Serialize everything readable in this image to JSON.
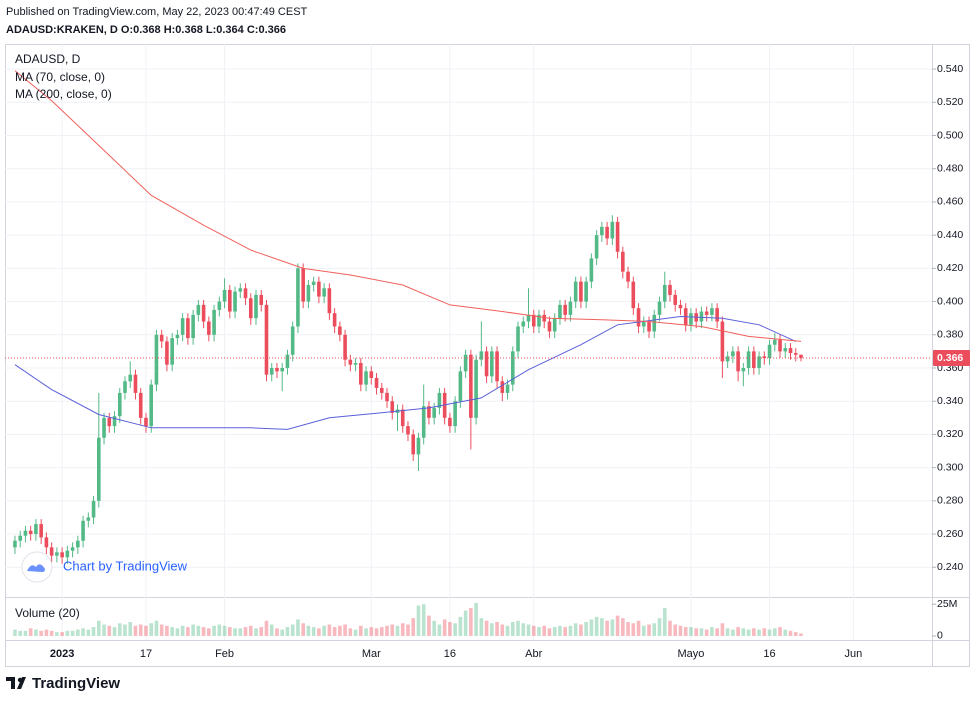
{
  "header": {
    "published": "Published on TradingView.com, May 22, 2023 00:47:49 CEST",
    "symbol_line": "ADAUSD:KRAKEN, D O:0.368 H:0.368 L:0.364 C:0.366"
  },
  "chart_data": {
    "type": "candlestick",
    "symbol": "ADAUSD, D",
    "watermark": "Chart by TradingView",
    "up_color": "#53b987",
    "down_color": "#eb4d5c",
    "grid": true,
    "open": [
      0.252,
      0.256,
      0.259,
      0.262,
      0.26,
      0.266,
      0.258,
      0.252,
      0.247,
      0.249,
      0.246,
      0.25,
      0.252,
      0.256,
      0.268,
      0.27,
      0.28,
      0.318,
      0.33,
      0.325,
      0.331,
      0.345,
      0.352,
      0.356,
      0.345,
      0.33,
      0.325,
      0.35,
      0.38,
      0.376,
      0.362,
      0.378,
      0.38,
      0.39,
      0.378,
      0.392,
      0.398,
      0.388,
      0.38,
      0.395,
      0.4,
      0.407,
      0.394,
      0.406,
      0.408,
      0.402,
      0.39,
      0.404,
      0.398,
      0.356,
      0.36,
      0.358,
      0.36,
      0.368,
      0.385,
      0.42,
      0.4,
      0.41,
      0.412,
      0.403,
      0.408,
      0.393,
      0.385,
      0.38,
      0.365,
      0.362,
      0.363,
      0.35,
      0.358,
      0.354,
      0.348,
      0.345,
      0.34,
      0.333,
      0.335,
      0.325,
      0.32,
      0.308,
      0.318,
      0.337,
      0.33,
      0.336,
      0.345,
      0.33,
      0.325,
      0.34,
      0.358,
      0.368,
      0.33,
      0.365,
      0.37,
      0.355,
      0.37,
      0.352,
      0.345,
      0.35,
      0.37,
      0.385,
      0.388,
      0.392,
      0.385,
      0.392,
      0.388,
      0.382,
      0.39,
      0.398,
      0.392,
      0.4,
      0.412,
      0.4,
      0.412,
      0.426,
      0.44,
      0.445,
      0.438,
      0.448,
      0.43,
      0.418,
      0.412,
      0.396,
      0.385,
      0.388,
      0.382,
      0.392,
      0.4,
      0.41,
      0.404,
      0.398,
      0.396,
      0.386,
      0.393,
      0.388,
      0.394,
      0.392,
      0.396,
      0.388,
      0.364,
      0.367,
      0.37,
      0.358,
      0.36,
      0.37,
      0.36,
      0.367,
      0.366,
      0.374,
      0.377,
      0.37,
      0.372,
      0.369,
      0.368
    ],
    "high": [
      0.259,
      0.262,
      0.265,
      0.265,
      0.269,
      0.269,
      0.261,
      0.255,
      0.252,
      0.252,
      0.253,
      0.255,
      0.259,
      0.271,
      0.273,
      0.283,
      0.345,
      0.333,
      0.333,
      0.334,
      0.348,
      0.355,
      0.364,
      0.359,
      0.348,
      0.333,
      0.353,
      0.383,
      0.383,
      0.379,
      0.381,
      0.383,
      0.393,
      0.393,
      0.395,
      0.401,
      0.401,
      0.391,
      0.398,
      0.403,
      0.414,
      0.41,
      0.409,
      0.411,
      0.411,
      0.405,
      0.407,
      0.407,
      0.401,
      0.363,
      0.363,
      0.363,
      0.371,
      0.388,
      0.423,
      0.423,
      0.413,
      0.415,
      0.415,
      0.411,
      0.411,
      0.396,
      0.388,
      0.383,
      0.368,
      0.366,
      0.366,
      0.361,
      0.361,
      0.357,
      0.351,
      0.348,
      0.343,
      0.338,
      0.338,
      0.328,
      0.323,
      0.321,
      0.35,
      0.34,
      0.339,
      0.348,
      0.348,
      0.333,
      0.343,
      0.361,
      0.371,
      0.371,
      0.368,
      0.388,
      0.373,
      0.373,
      0.373,
      0.355,
      0.353,
      0.373,
      0.388,
      0.391,
      0.408,
      0.395,
      0.395,
      0.395,
      0.391,
      0.393,
      0.401,
      0.401,
      0.403,
      0.415,
      0.415,
      0.415,
      0.429,
      0.443,
      0.448,
      0.448,
      0.452,
      0.451,
      0.433,
      0.421,
      0.415,
      0.399,
      0.391,
      0.391,
      0.395,
      0.403,
      0.418,
      0.413,
      0.407,
      0.401,
      0.399,
      0.396,
      0.396,
      0.397,
      0.397,
      0.399,
      0.399,
      0.391,
      0.37,
      0.373,
      0.373,
      0.363,
      0.373,
      0.373,
      0.37,
      0.37,
      0.377,
      0.381,
      0.38,
      0.375,
      0.375,
      0.372,
      0.368
    ],
    "low": [
      0.248,
      0.252,
      0.255,
      0.256,
      0.256,
      0.254,
      0.248,
      0.243,
      0.243,
      0.242,
      0.242,
      0.246,
      0.248,
      0.252,
      0.264,
      0.266,
      0.276,
      0.314,
      0.321,
      0.321,
      0.327,
      0.341,
      0.348,
      0.341,
      0.326,
      0.321,
      0.321,
      0.346,
      0.372,
      0.358,
      0.358,
      0.374,
      0.376,
      0.374,
      0.374,
      0.388,
      0.384,
      0.376,
      0.376,
      0.391,
      0.396,
      0.39,
      0.39,
      0.402,
      0.398,
      0.386,
      0.386,
      0.394,
      0.352,
      0.352,
      0.354,
      0.346,
      0.356,
      0.364,
      0.381,
      0.396,
      0.396,
      0.406,
      0.399,
      0.399,
      0.389,
      0.381,
      0.376,
      0.361,
      0.358,
      0.358,
      0.346,
      0.346,
      0.35,
      0.344,
      0.341,
      0.336,
      0.329,
      0.322,
      0.321,
      0.316,
      0.304,
      0.298,
      0.314,
      0.326,
      0.326,
      0.332,
      0.326,
      0.321,
      0.321,
      0.336,
      0.354,
      0.311,
      0.326,
      0.361,
      0.351,
      0.351,
      0.348,
      0.34,
      0.341,
      0.346,
      0.366,
      0.381,
      0.384,
      0.381,
      0.381,
      0.384,
      0.378,
      0.378,
      0.386,
      0.388,
      0.388,
      0.396,
      0.396,
      0.396,
      0.408,
      0.422,
      0.436,
      0.434,
      0.434,
      0.426,
      0.414,
      0.408,
      0.392,
      0.381,
      0.381,
      0.378,
      0.378,
      0.388,
      0.396,
      0.4,
      0.394,
      0.392,
      0.382,
      0.382,
      0.384,
      0.384,
      0.388,
      0.388,
      0.384,
      0.354,
      0.36,
      0.363,
      0.352,
      0.349,
      0.356,
      0.356,
      0.356,
      0.362,
      0.362,
      0.37,
      0.366,
      0.366,
      0.365,
      0.364,
      0.364
    ],
    "close": [
      0.256,
      0.259,
      0.262,
      0.26,
      0.266,
      0.258,
      0.252,
      0.247,
      0.249,
      0.246,
      0.25,
      0.252,
      0.256,
      0.268,
      0.27,
      0.28,
      0.318,
      0.33,
      0.325,
      0.331,
      0.345,
      0.352,
      0.356,
      0.345,
      0.33,
      0.325,
      0.35,
      0.38,
      0.376,
      0.362,
      0.378,
      0.38,
      0.39,
      0.378,
      0.392,
      0.398,
      0.388,
      0.38,
      0.395,
      0.4,
      0.407,
      0.394,
      0.406,
      0.408,
      0.402,
      0.39,
      0.404,
      0.398,
      0.356,
      0.36,
      0.358,
      0.36,
      0.368,
      0.385,
      0.42,
      0.4,
      0.41,
      0.412,
      0.403,
      0.408,
      0.393,
      0.385,
      0.38,
      0.365,
      0.362,
      0.363,
      0.35,
      0.358,
      0.354,
      0.348,
      0.345,
      0.34,
      0.333,
      0.335,
      0.325,
      0.32,
      0.308,
      0.318,
      0.337,
      0.33,
      0.336,
      0.345,
      0.33,
      0.325,
      0.34,
      0.358,
      0.368,
      0.33,
      0.365,
      0.37,
      0.355,
      0.37,
      0.352,
      0.345,
      0.35,
      0.37,
      0.385,
      0.388,
      0.392,
      0.385,
      0.392,
      0.388,
      0.382,
      0.39,
      0.398,
      0.392,
      0.4,
      0.412,
      0.4,
      0.412,
      0.426,
      0.44,
      0.445,
      0.438,
      0.448,
      0.43,
      0.418,
      0.412,
      0.396,
      0.385,
      0.388,
      0.382,
      0.392,
      0.4,
      0.41,
      0.404,
      0.398,
      0.396,
      0.386,
      0.393,
      0.388,
      0.394,
      0.392,
      0.396,
      0.388,
      0.364,
      0.367,
      0.37,
      0.358,
      0.36,
      0.37,
      0.36,
      0.367,
      0.366,
      0.374,
      0.377,
      0.37,
      0.372,
      0.369,
      0.368,
      0.366
    ],
    "xlim": [
      -1.9,
      175
    ],
    "xticks": [
      {
        "value": 9,
        "label": "2023"
      },
      {
        "value": 25,
        "label": "17"
      },
      {
        "value": 40,
        "label": "Feb"
      },
      {
        "value": 68,
        "label": "Mar"
      },
      {
        "value": 83,
        "label": "16"
      },
      {
        "value": 99,
        "label": "Abr"
      },
      {
        "value": 129,
        "label": "Mayo"
      },
      {
        "value": 144,
        "label": "16"
      },
      {
        "value": 160,
        "label": "Jun"
      }
    ],
    "ylim": [
      0.2221,
      0.5551
    ],
    "yticks": [
      {
        "value": 0.24,
        "label": "0.240"
      },
      {
        "value": 0.26,
        "label": "0.260"
      },
      {
        "value": 0.28,
        "label": "0.280"
      },
      {
        "value": 0.3,
        "label": "0.300"
      },
      {
        "value": 0.32,
        "label": "0.320"
      },
      {
        "value": 0.34,
        "label": "0.340"
      },
      {
        "value": 0.36,
        "label": "0.360"
      },
      {
        "value": 0.38,
        "label": "0.380"
      },
      {
        "value": 0.4,
        "label": "0.400"
      },
      {
        "value": 0.42,
        "label": "0.420"
      },
      {
        "value": 0.44,
        "label": "0.440"
      },
      {
        "value": 0.46,
        "label": "0.460"
      },
      {
        "value": 0.48,
        "label": "0.480"
      },
      {
        "value": 0.5,
        "label": "0.500"
      },
      {
        "value": 0.52,
        "label": "0.520"
      },
      {
        "value": 0.54,
        "label": "0.540"
      }
    ],
    "series": [
      {
        "name": "MA (70, close, 0)",
        "color": "#5b5fd9",
        "x": [
          0,
          7,
          16,
          26,
          35,
          45,
          52,
          60,
          70,
          79,
          89,
          98,
          108,
          115,
          127,
          135,
          142,
          149
        ],
        "values": [
          0.362,
          0.347,
          0.332,
          0.324,
          0.324,
          0.324,
          0.323,
          0.33,
          0.333,
          0.336,
          0.342,
          0.359,
          0.374,
          0.386,
          0.391,
          0.39,
          0.386,
          0.376
        ]
      },
      {
        "name": "MA (200, close, 0)",
        "color": "#f0605a",
        "x": [
          0,
          7,
          17,
          26,
          36,
          45,
          55,
          64,
          74,
          83,
          93,
          102,
          112,
          121,
          131,
          140,
          150
        ],
        "values": [
          0.539,
          0.521,
          0.491,
          0.464,
          0.446,
          0.431,
          0.42,
          0.416,
          0.41,
          0.398,
          0.394,
          0.39,
          0.389,
          0.388,
          0.385,
          0.379,
          0.376
        ]
      }
    ],
    "volume": {
      "name": "Volume (20)",
      "ylim": [
        -3.2,
        30.7
      ],
      "yticks": [
        0,
        {
          "value": 25,
          "label": "25M"
        }
      ],
      "values": [
        5,
        4,
        4,
        6,
        5,
        4,
        5,
        4,
        3,
        3,
        4,
        4,
        5,
        6,
        5,
        7,
        12,
        9,
        8,
        7,
        10,
        9,
        11,
        8,
        9,
        8,
        10,
        12,
        9,
        8,
        7,
        6,
        8,
        7,
        9,
        8,
        7,
        6,
        8,
        9,
        8,
        7,
        6,
        6,
        7,
        8,
        6,
        7,
        12,
        9,
        6,
        5,
        7,
        9,
        13,
        10,
        8,
        7,
        6,
        8,
        9,
        7,
        8,
        9,
        6,
        5,
        8,
        6,
        7,
        6,
        7,
        8,
        9,
        8,
        10,
        9,
        14,
        24,
        25,
        16,
        12,
        9,
        13,
        11,
        10,
        15,
        20,
        22,
        26,
        14,
        12,
        10,
        11,
        9,
        8,
        11,
        12,
        10,
        9,
        8,
        7,
        8,
        6,
        7,
        8,
        7,
        8,
        10,
        9,
        11,
        13,
        15,
        14,
        12,
        13,
        16,
        14,
        11,
        10,
        12,
        8,
        9,
        10,
        14,
        22,
        12,
        9,
        8,
        7,
        7,
        6,
        6,
        5,
        7,
        6,
        10,
        6,
        5,
        7,
        6,
        5,
        6,
        5,
        6,
        5,
        6,
        7,
        5,
        4,
        3,
        2
      ]
    }
  },
  "footer": {
    "logo": "TradingView"
  }
}
